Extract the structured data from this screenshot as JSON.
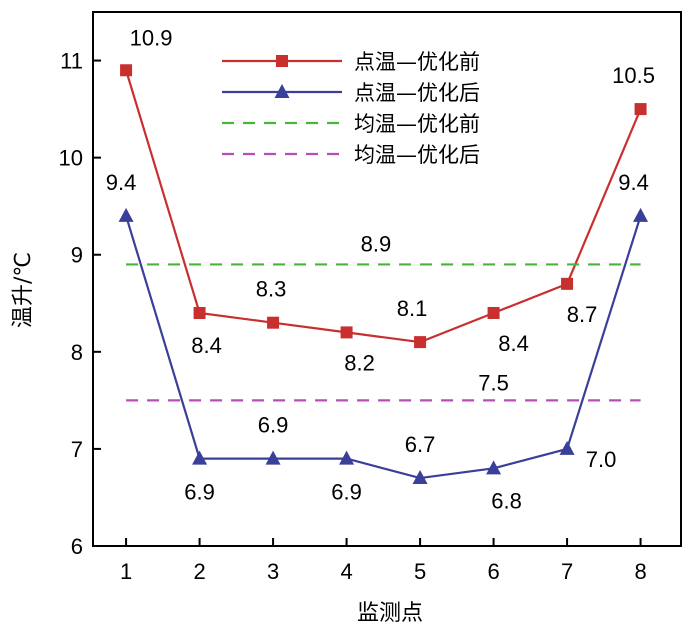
{
  "chart_data": {
    "type": "line",
    "xlabel": "监测点",
    "ylabel": "温升/℃",
    "x": [
      1,
      2,
      3,
      4,
      5,
      6,
      7,
      8
    ],
    "xlim": [
      0.55,
      8.55
    ],
    "ylim": [
      6,
      11.5
    ],
    "yticks": [
      6,
      7,
      8,
      9,
      10,
      11
    ],
    "grid": false,
    "legend_position": "top-right",
    "series": [
      {
        "name": "点温—优化前",
        "style": "solid",
        "marker": "square",
        "color": "#c8302f",
        "values": [
          10.9,
          8.4,
          8.3,
          8.2,
          8.1,
          8.4,
          8.7,
          10.5
        ],
        "labels": [
          "10.9",
          "8.4",
          "8.3",
          "8.2",
          "8.1",
          "8.4",
          "8.7",
          "10.5"
        ]
      },
      {
        "name": "点温—优化后",
        "style": "solid",
        "marker": "triangle",
        "color": "#3a3f9a",
        "values": [
          9.4,
          6.9,
          6.9,
          6.9,
          6.7,
          6.8,
          7.0,
          9.4
        ],
        "labels": [
          "9.4",
          "6.9",
          "6.9",
          "6.9",
          "6.7",
          "6.8",
          "7.0",
          "9.4"
        ]
      },
      {
        "name": "均温—优化前",
        "style": "dashed",
        "marker": "none",
        "color": "#49b43a",
        "values": [
          8.9,
          8.9,
          8.9,
          8.9,
          8.9,
          8.9,
          8.9,
          8.9
        ],
        "labels": [
          "8.9"
        ]
      },
      {
        "name": "均温—优化后",
        "style": "dashed",
        "marker": "none",
        "color": "#b54fb5",
        "values": [
          7.5,
          7.5,
          7.5,
          7.5,
          7.5,
          7.5,
          7.5,
          7.5
        ],
        "labels": [
          "7.5"
        ]
      }
    ]
  }
}
